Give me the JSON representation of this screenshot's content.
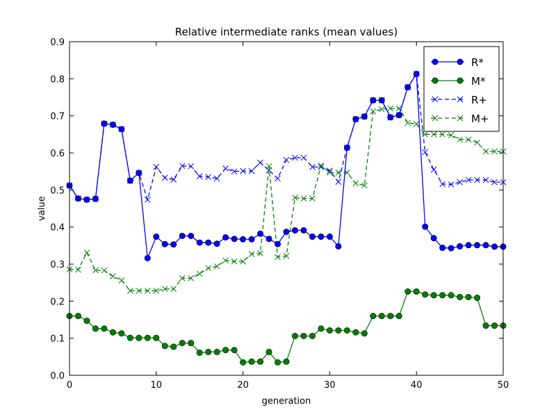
{
  "chart_data": {
    "type": "line",
    "title": "Relative intermediate ranks (mean values)",
    "xlabel": "generation",
    "ylabel": "value",
    "xlim": [
      0,
      50
    ],
    "ylim": [
      0.0,
      0.9
    ],
    "xticks": [
      0,
      10,
      20,
      30,
      40,
      50
    ],
    "xtick_labels": [
      "0",
      "10",
      "20",
      "30",
      "40",
      "50"
    ],
    "yticks": [
      0.0,
      0.1,
      0.2,
      0.3,
      0.4,
      0.5,
      0.6,
      0.7,
      0.8,
      0.9
    ],
    "ytick_labels": [
      "0.0",
      "0.1",
      "0.2",
      "0.3",
      "0.4",
      "0.5",
      "0.6",
      "0.7",
      "0.8",
      "0.9"
    ],
    "legend_position": "top-right",
    "x": [
      0,
      1,
      2,
      3,
      4,
      5,
      6,
      7,
      8,
      9,
      10,
      11,
      12,
      13,
      14,
      15,
      16,
      17,
      18,
      19,
      20,
      21,
      22,
      23,
      24,
      25,
      26,
      27,
      28,
      29,
      30,
      31,
      32,
      33,
      34,
      35,
      36,
      37,
      38,
      39,
      40,
      41,
      42,
      43,
      44,
      45,
      46,
      47,
      48,
      49,
      50
    ],
    "series": [
      {
        "name": "R*",
        "color": "#0000ff",
        "linestyle": "solid",
        "marker": "circle",
        "values": [
          0.512,
          0.477,
          0.474,
          0.476,
          0.679,
          0.676,
          0.664,
          0.525,
          0.546,
          0.316,
          0.374,
          0.354,
          0.353,
          0.376,
          0.376,
          0.358,
          0.358,
          0.355,
          0.372,
          0.368,
          0.367,
          0.367,
          0.382,
          0.368,
          0.354,
          0.387,
          0.391,
          0.391,
          0.374,
          0.374,
          0.374,
          0.348,
          0.614,
          0.691,
          0.698,
          0.742,
          0.742,
          0.696,
          0.702,
          0.777,
          0.813,
          0.401,
          0.37,
          0.344,
          0.343,
          0.348,
          0.351,
          0.351,
          0.351,
          0.347,
          0.347
        ]
      },
      {
        "name": "M*",
        "color": "#007f00",
        "linestyle": "solid",
        "marker": "circle",
        "values": [
          0.16,
          0.16,
          0.147,
          0.126,
          0.126,
          0.116,
          0.113,
          0.101,
          0.101,
          0.101,
          0.101,
          0.079,
          0.077,
          0.087,
          0.087,
          0.061,
          0.063,
          0.063,
          0.068,
          0.068,
          0.035,
          0.037,
          0.037,
          0.063,
          0.035,
          0.037,
          0.106,
          0.106,
          0.106,
          0.126,
          0.121,
          0.121,
          0.121,
          0.116,
          0.113,
          0.16,
          0.16,
          0.16,
          0.16,
          0.226,
          0.226,
          0.218,
          0.216,
          0.216,
          0.216,
          0.211,
          0.211,
          0.209,
          0.134,
          0.134,
          0.134
        ]
      },
      {
        "name": "R+",
        "color": "#0000ff",
        "linestyle": "dashed",
        "marker": "x",
        "values": [
          0.512,
          0.477,
          0.474,
          0.476,
          0.679,
          0.676,
          0.664,
          0.525,
          0.546,
          0.474,
          0.562,
          0.533,
          0.528,
          0.565,
          0.564,
          0.537,
          0.535,
          0.531,
          0.558,
          0.55,
          0.551,
          0.551,
          0.574,
          0.553,
          0.531,
          0.581,
          0.587,
          0.587,
          0.562,
          0.562,
          0.552,
          0.522,
          0.614,
          0.691,
          0.698,
          0.742,
          0.742,
          0.696,
          0.702,
          0.777,
          0.813,
          0.602,
          0.555,
          0.516,
          0.515,
          0.521,
          0.527,
          0.527,
          0.527,
          0.521,
          0.521
        ]
      },
      {
        "name": "M+",
        "color": "#007f00",
        "linestyle": "dashed",
        "marker": "x",
        "values": [
          0.286,
          0.285,
          0.331,
          0.283,
          0.283,
          0.267,
          0.256,
          0.228,
          0.228,
          0.228,
          0.228,
          0.233,
          0.233,
          0.262,
          0.262,
          0.274,
          0.289,
          0.294,
          0.31,
          0.307,
          0.307,
          0.327,
          0.329,
          0.564,
          0.319,
          0.322,
          0.479,
          0.477,
          0.477,
          0.566,
          0.547,
          0.547,
          0.547,
          0.518,
          0.512,
          0.712,
          0.718,
          0.72,
          0.72,
          0.681,
          0.678,
          0.65,
          0.65,
          0.65,
          0.648,
          0.636,
          0.636,
          0.628,
          0.604,
          0.604,
          0.604
        ]
      }
    ]
  }
}
